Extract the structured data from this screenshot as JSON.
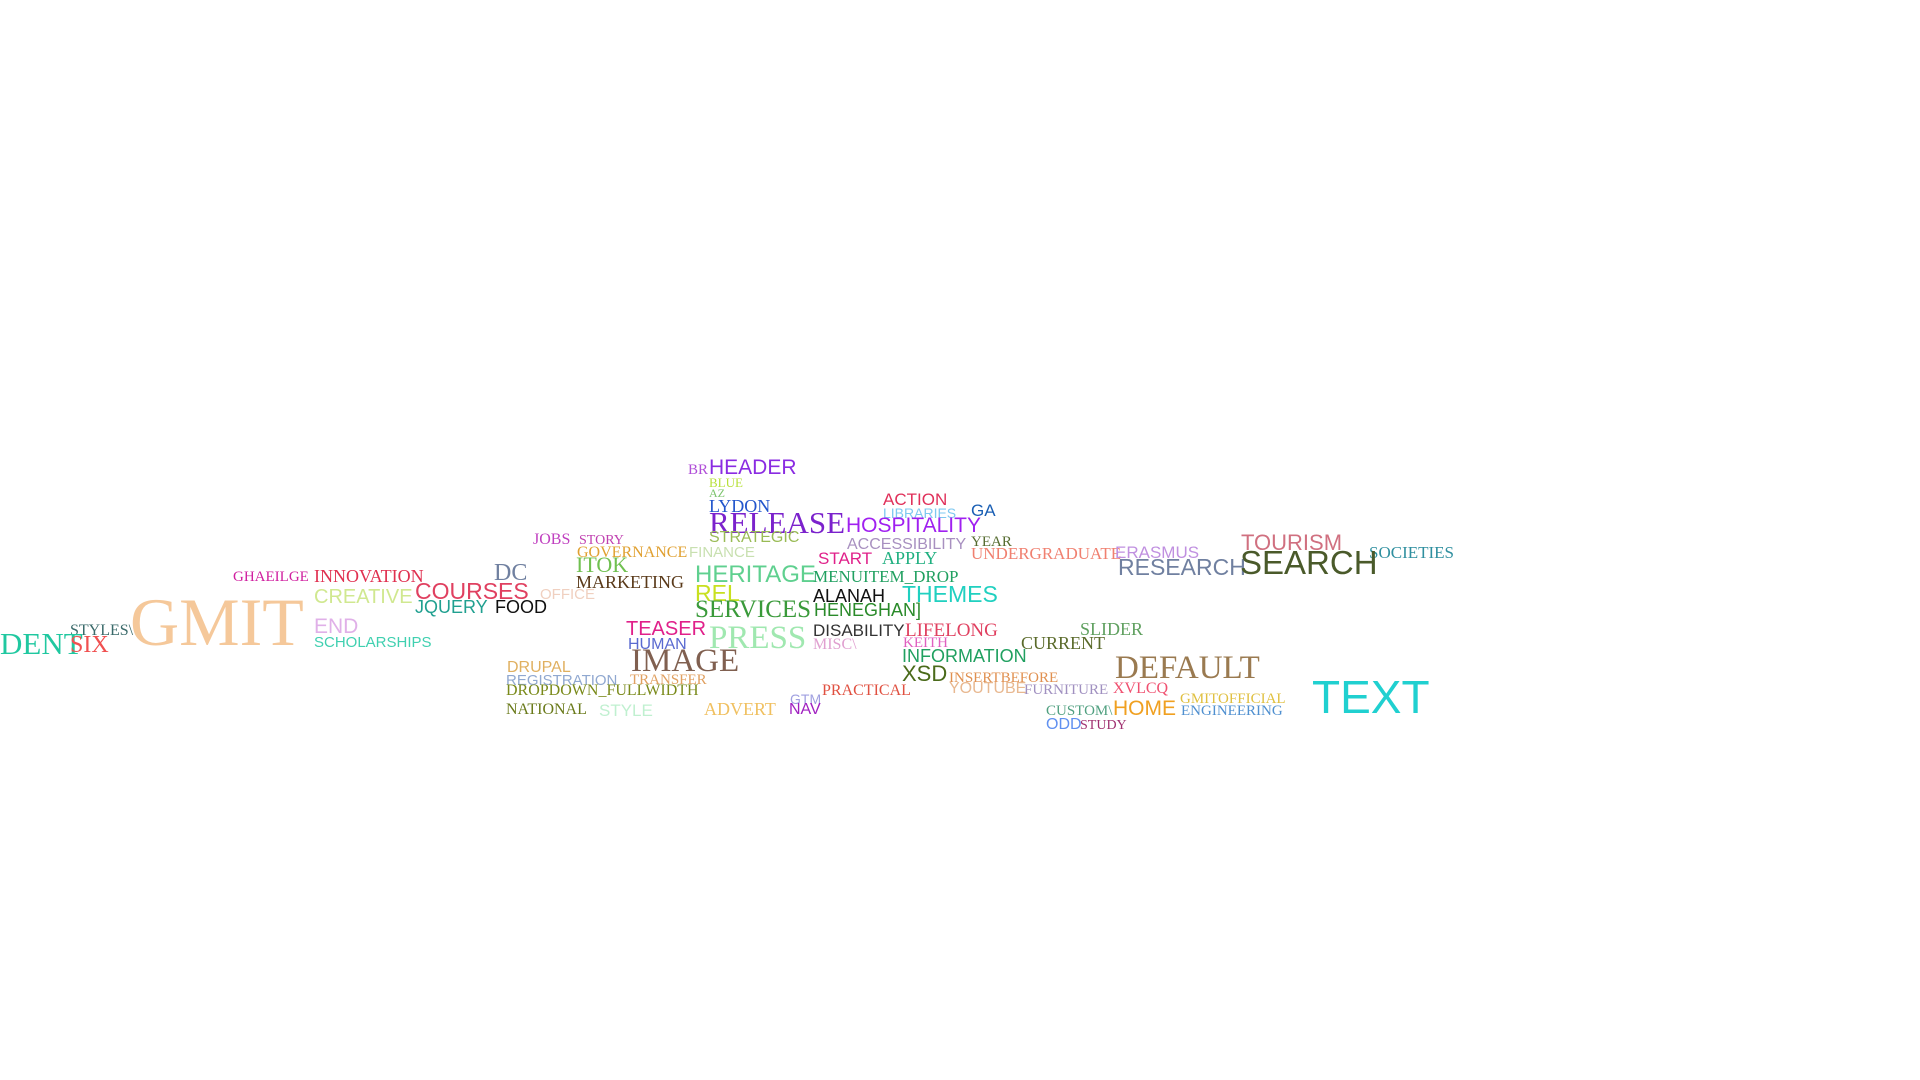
{
  "words": [
    {
      "text": "BR",
      "color": "#b04ed8"
    },
    {
      "text": "HEADER",
      "color": "#8a2be2"
    },
    {
      "text": "BLUE",
      "color": "#b7e03a"
    },
    {
      "text": "AZ",
      "color": "#7ac36a"
    },
    {
      "text": "LYDON",
      "color": "#2255cc"
    },
    {
      "text": "ACTION",
      "color": "#e0305a"
    },
    {
      "text": "LIBRARIES",
      "color": "#7ec8f0"
    },
    {
      "text": "GA",
      "color": "#1a5fb4"
    },
    {
      "text": "RELEASE",
      "color": "#7b22cc"
    },
    {
      "text": "HOSPITALITY",
      "color": "#a020f0"
    },
    {
      "text": "STRATEGIC",
      "color": "#99bb55"
    },
    {
      "text": "ACCESSIBILITY",
      "color": "#a890c0"
    },
    {
      "text": "YEAR",
      "color": "#556b2f"
    },
    {
      "text": "JOBS",
      "color": "#c040c0"
    },
    {
      "text": "STORY",
      "color": "#c040b0"
    },
    {
      "text": "GOVERNANCE",
      "color": "#e0a030"
    },
    {
      "text": "FINANCE",
      "color": "#c8e0b0"
    },
    {
      "text": "START",
      "color": "#e0208a"
    },
    {
      "text": "APPLY",
      "color": "#20b080"
    },
    {
      "text": "UNDERGRADUATE",
      "color": "#f08070"
    },
    {
      "text": "ERASMUS",
      "color": "#c090e0"
    },
    {
      "text": "TOURISM",
      "color": "#d07080"
    },
    {
      "text": "SOCIETIES",
      "color": "#2f8f9f"
    },
    {
      "text": "ITOK",
      "color": "#70c050"
    },
    {
      "text": "DC",
      "color": "#7080a0"
    },
    {
      "text": "HERITAGE",
      "color": "#5fd08f"
    },
    {
      "text": "MENUITEM_DROP",
      "color": "#20a060"
    },
    {
      "text": "RESEARCH",
      "color": "#7080a0"
    },
    {
      "text": "SEARCH",
      "color": "#4a5a2a"
    },
    {
      "text": "GHAEILGE",
      "color": "#d020a0"
    },
    {
      "text": "INNOVATION",
      "color": "#e03050"
    },
    {
      "text": "MARKETING",
      "color": "#5a3a1a"
    },
    {
      "text": "COURSES",
      "color": "#e04060"
    },
    {
      "text": "REL",
      "color": "#c8e020"
    },
    {
      "text": "ALANAH",
      "color": "#111111"
    },
    {
      "text": "THEMES",
      "color": "#20d0c0"
    },
    {
      "text": "CREATIVE",
      "color": "#d0e890"
    },
    {
      "text": "OFFICE",
      "color": "#f0d0c0"
    },
    {
      "text": "JQUERY",
      "color": "#20a090"
    },
    {
      "text": "FOOD",
      "color": "#101010"
    },
    {
      "text": "SERVICES",
      "color": "#3a9a3a"
    },
    {
      "text": "HENEGHAN]",
      "color": "#2a8a2a"
    },
    {
      "text": "GMIT",
      "color": "#f5c89a"
    },
    {
      "text": "END",
      "color": "#e0b0e8"
    },
    {
      "text": "TEASER",
      "color": "#e0208a"
    },
    {
      "text": "DISABILITY",
      "color": "#333333"
    },
    {
      "text": "LIFELONG",
      "color": "#e04060"
    },
    {
      "text": "SLIDER",
      "color": "#5fa05f"
    },
    {
      "text": "STYLES\\",
      "color": "#3a6a6a"
    },
    {
      "text": "DENT",
      "color": "#20c8a0"
    },
    {
      "text": "SIX",
      "color": "#f05050"
    },
    {
      "text": "SCHOLARSHIPS",
      "color": "#40d0b0"
    },
    {
      "text": "HUMAN",
      "color": "#5a6ad0"
    },
    {
      "text": "PRESS",
      "color": "#a0e8b0"
    },
    {
      "text": "MISC\\",
      "color": "#e0a0d0"
    },
    {
      "text": "KEITH",
      "color": "#e060c0"
    },
    {
      "text": "CURRENT",
      "color": "#5a6a2a"
    },
    {
      "text": "INFORMATION",
      "color": "#20a060"
    },
    {
      "text": "IMAGE",
      "color": "#806050"
    },
    {
      "text": "DEFAULT",
      "color": "#9a7a50"
    },
    {
      "text": "DRUPAL",
      "color": "#e0b060"
    },
    {
      "text": "XSD",
      "color": "#4a6a1a"
    },
    {
      "text": "INSERTBEFORE",
      "color": "#e09050"
    },
    {
      "text": "REGISTRATION",
      "color": "#90a8d0"
    },
    {
      "text": "TRANSFER",
      "color": "#e0a060"
    },
    {
      "text": "DROPDOWN_FULLWIDTH",
      "color": "#7a8a1a"
    },
    {
      "text": "PRACTICAL",
      "color": "#e05040"
    },
    {
      "text": "YOUTUBE",
      "color": "#e8b890"
    },
    {
      "text": "FURNITURE",
      "color": "#a090c0"
    },
    {
      "text": "XVLCQ",
      "color": "#f05070"
    },
    {
      "text": "GMITOFFICIAL",
      "color": "#e0c040"
    },
    {
      "text": "TEXT",
      "color": "#20d0d0"
    },
    {
      "text": "GTM",
      "color": "#a0a0e0"
    },
    {
      "text": "NATIONAL",
      "color": "#6a7a1a"
    },
    {
      "text": "STYLE",
      "color": "#c0f0d0"
    },
    {
      "text": "ADVERT",
      "color": "#f0c060"
    },
    {
      "text": "NAV",
      "color": "#a020c0"
    },
    {
      "text": "CUSTOM\\",
      "color": "#50a080"
    },
    {
      "text": "HOME",
      "color": "#f0a020"
    },
    {
      "text": "ENGINEERING",
      "color": "#5090d0"
    },
    {
      "text": "ODD",
      "color": "#6090f0"
    },
    {
      "text": "STUDY",
      "color": "#a03070"
    }
  ]
}
